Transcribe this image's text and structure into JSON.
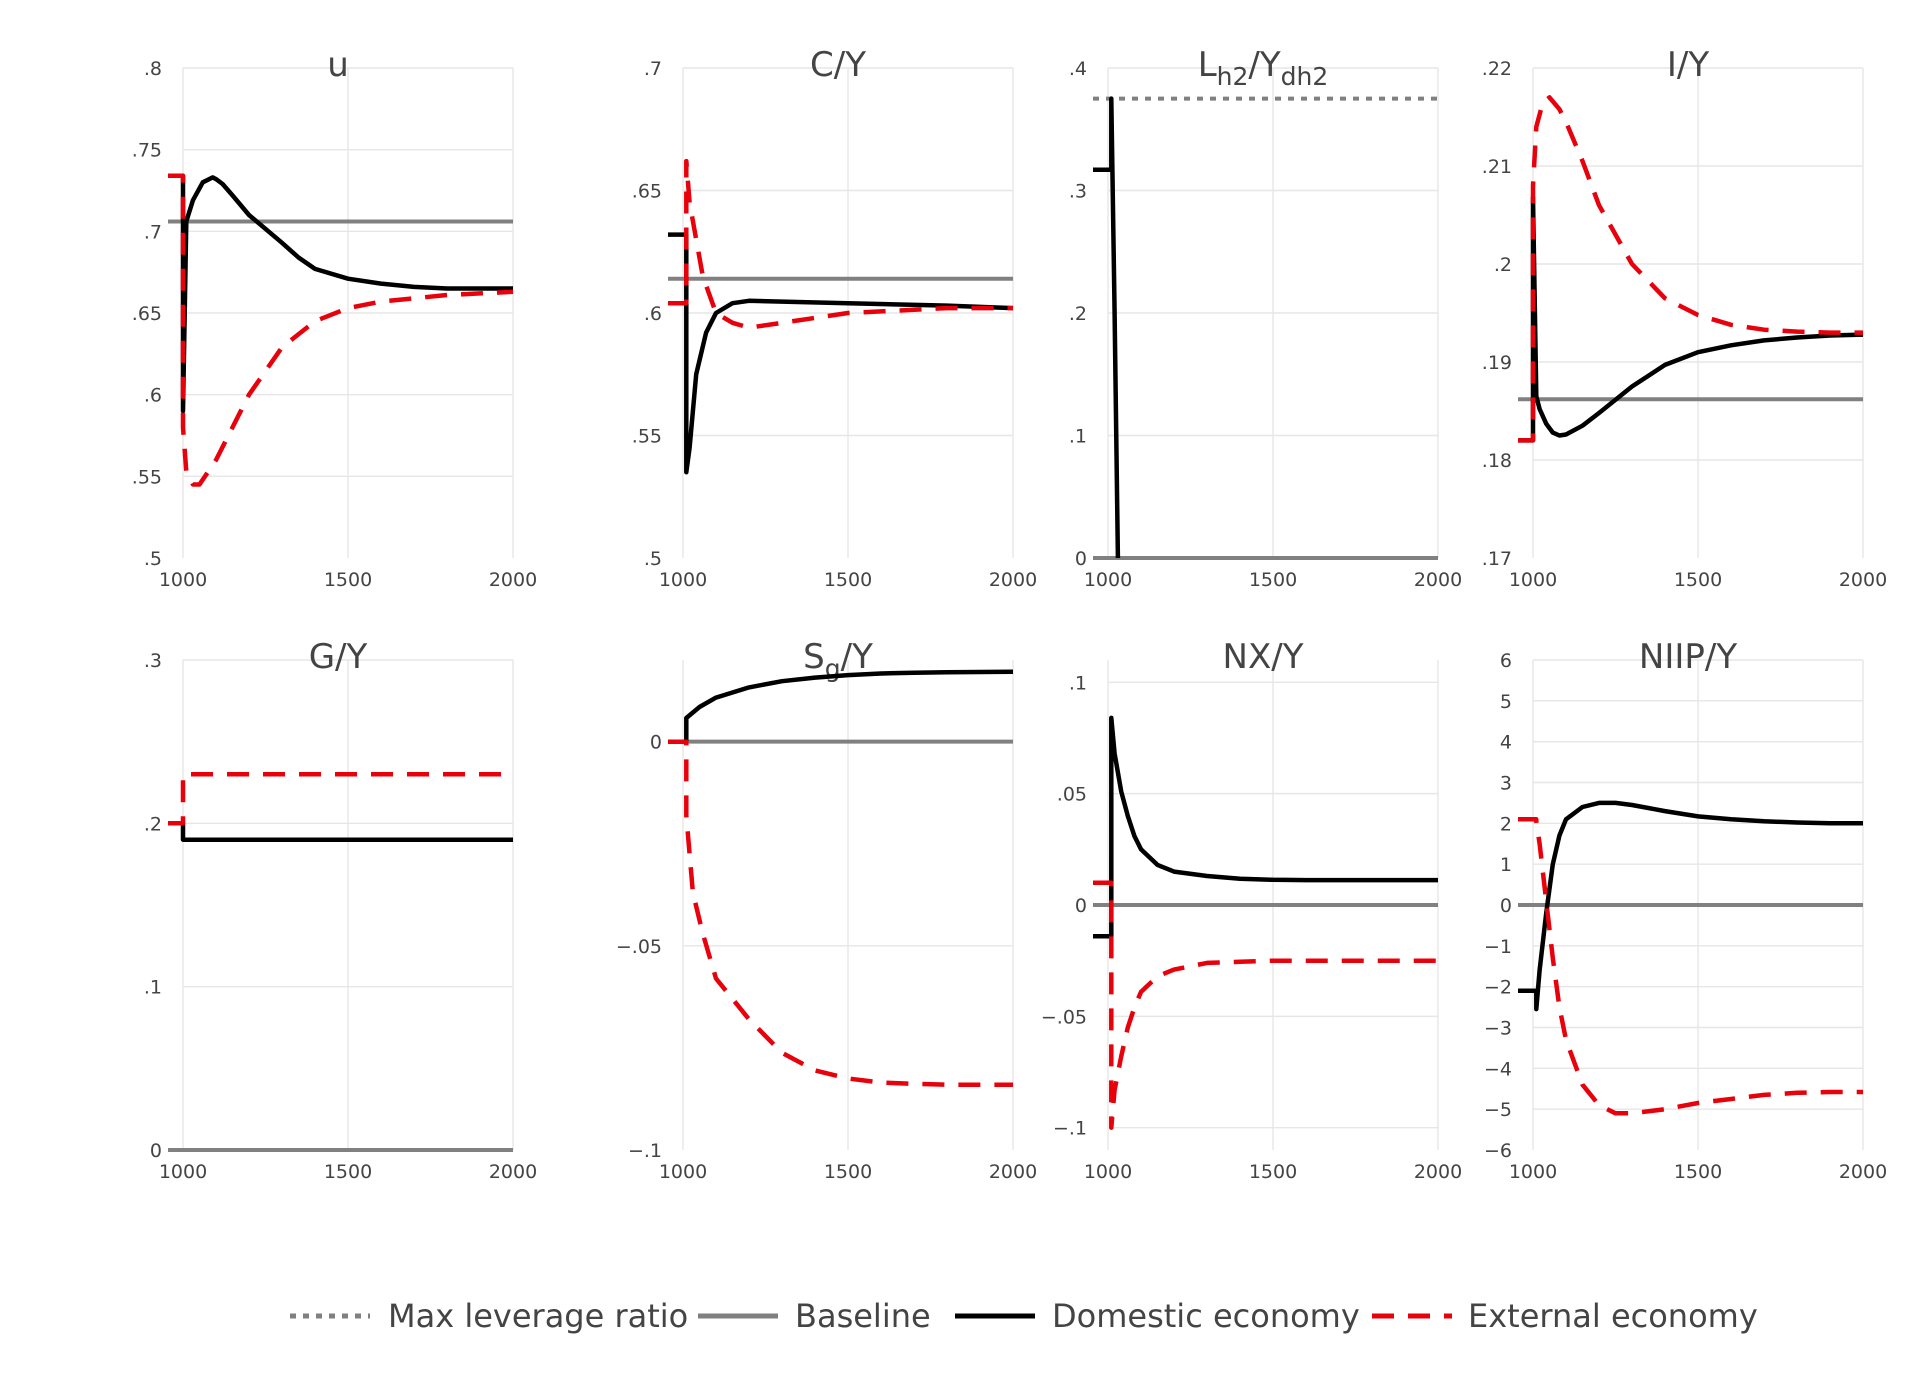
{
  "colors": {
    "max_leverage": "#808080",
    "baseline": "#808080",
    "domestic": "#000000",
    "external": "#e8000b"
  },
  "legend": [
    {
      "key": "max_leverage",
      "label": "Max leverage ratio"
    },
    {
      "key": "baseline",
      "label": "Baseline"
    },
    {
      "key": "domestic",
      "label": "Domestic economy"
    },
    {
      "key": "external",
      "label": "External economy"
    }
  ],
  "chart_data": [
    {
      "type": "line",
      "title": "u",
      "xlim": [
        1000,
        2000
      ],
      "ylim": [
        0.5,
        0.8
      ],
      "xticks": [
        1000,
        1500,
        2000
      ],
      "yticks": [
        0.5,
        0.55,
        0.6,
        0.65,
        0.7,
        0.75,
        0.8
      ],
      "baseline": 0.706,
      "series": [
        {
          "key": "domestic",
          "x": [
            950,
            1000,
            1000,
            1010,
            1030,
            1060,
            1090,
            1100,
            1120,
            1150,
            1200,
            1300,
            1350,
            1400,
            1500,
            1600,
            1700,
            1800,
            1900,
            2000
          ],
          "y": [
            0.734,
            0.734,
            0.59,
            0.706,
            0.719,
            0.73,
            0.733,
            0.732,
            0.729,
            0.722,
            0.71,
            0.693,
            0.684,
            0.677,
            0.671,
            0.668,
            0.666,
            0.665,
            0.665,
            0.665
          ]
        },
        {
          "key": "external",
          "x": [
            950,
            1000,
            1000,
            1010,
            1030,
            1050,
            1100,
            1200,
            1300,
            1400,
            1500,
            1600,
            1700,
            1800,
            1900,
            2000
          ],
          "y": [
            0.734,
            0.734,
            0.58,
            0.553,
            0.545,
            0.545,
            0.56,
            0.6,
            0.629,
            0.645,
            0.653,
            0.657,
            0.659,
            0.661,
            0.662,
            0.663
          ]
        }
      ]
    },
    {
      "type": "line",
      "title": "C/Y",
      "xlim": [
        1000,
        2000
      ],
      "ylim": [
        0.5,
        0.7
      ],
      "xticks": [
        1000,
        1500,
        2000
      ],
      "yticks": [
        0.5,
        0.55,
        0.6,
        0.65,
        0.7
      ],
      "baseline": 0.614,
      "series": [
        {
          "key": "domestic",
          "x": [
            950,
            1010,
            1010,
            1020,
            1040,
            1070,
            1100,
            1150,
            1200,
            1500,
            1800,
            2000
          ],
          "y": [
            0.632,
            0.632,
            0.535,
            0.545,
            0.575,
            0.592,
            0.6,
            0.604,
            0.605,
            0.604,
            0.603,
            0.602
          ]
        },
        {
          "key": "external",
          "x": [
            950,
            1010,
            1010,
            1020,
            1040,
            1060,
            1100,
            1150,
            1200,
            1300,
            1500,
            1800,
            2000
          ],
          "y": [
            0.604,
            0.604,
            0.662,
            0.645,
            0.63,
            0.615,
            0.6,
            0.596,
            0.594,
            0.596,
            0.6,
            0.602,
            0.602
          ]
        }
      ]
    },
    {
      "type": "line",
      "title": "L",
      "title_sub1": "h2",
      "title_mid": "/Y",
      "title_sub2": "dh2",
      "xlim": [
        1000,
        2000
      ],
      "ylim": [
        0,
        0.4
      ],
      "xticks": [
        1000,
        1500,
        2000
      ],
      "yticks": [
        0,
        0.1,
        0.2,
        0.3,
        0.4
      ],
      "baseline": 0,
      "max_leverage": 0.375,
      "series": [
        {
          "key": "domestic",
          "x": [
            950,
            1010,
            1010,
            1020,
            1030
          ],
          "y": [
            0.317,
            0.317,
            0.375,
            0.2,
            0
          ]
        }
      ]
    },
    {
      "type": "line",
      "title": "I/Y",
      "xlim": [
        1000,
        2000
      ],
      "ylim": [
        0.17,
        0.22
      ],
      "xticks": [
        1000,
        1500,
        2000
      ],
      "yticks": [
        0.17,
        0.18,
        0.19,
        0.2,
        0.21,
        0.22
      ],
      "baseline": 0.1862,
      "series": [
        {
          "key": "domestic",
          "x": [
            950,
            1000,
            1000,
            1010,
            1020,
            1040,
            1060,
            1080,
            1100,
            1150,
            1200,
            1300,
            1400,
            1500,
            1600,
            1700,
            1800,
            1900,
            2000
          ],
          "y": [
            0.182,
            0.182,
            0.2068,
            0.1865,
            0.1852,
            0.1837,
            0.1828,
            0.1825,
            0.1826,
            0.1835,
            0.1848,
            0.1875,
            0.1897,
            0.191,
            0.1917,
            0.1922,
            0.1925,
            0.1927,
            0.1928
          ]
        },
        {
          "key": "external",
          "x": [
            950,
            1000,
            1000,
            1010,
            1030,
            1050,
            1080,
            1100,
            1150,
            1200,
            1300,
            1400,
            1500,
            1600,
            1700,
            1800,
            1900,
            2000
          ],
          "y": [
            0.182,
            0.182,
            0.208,
            0.214,
            0.2165,
            0.217,
            0.2158,
            0.2145,
            0.2105,
            0.206,
            0.2,
            0.1965,
            0.1948,
            0.1938,
            0.1933,
            0.1931,
            0.193,
            0.193
          ]
        }
      ]
    },
    {
      "type": "line",
      "title": "G/Y",
      "xlim": [
        1000,
        2000
      ],
      "ylim": [
        0,
        0.3
      ],
      "xticks": [
        1000,
        1500,
        2000
      ],
      "yticks": [
        0,
        0.1,
        0.2,
        0.3
      ],
      "baseline": 0,
      "series": [
        {
          "key": "domestic",
          "x": [
            950,
            1000,
            1000,
            2000
          ],
          "y": [
            0.2,
            0.2,
            0.19,
            0.19
          ]
        },
        {
          "key": "external",
          "x": [
            950,
            1000,
            1000,
            2000
          ],
          "y": [
            0.2,
            0.2,
            0.23,
            0.23
          ]
        }
      ]
    },
    {
      "type": "line",
      "title": "S",
      "title_sub1": "g",
      "title_mid": "/Y",
      "xlim": [
        1000,
        2000
      ],
      "ylim": [
        -0.1,
        0.02
      ],
      "xticks": [
        1000,
        1500,
        2000
      ],
      "yticks": [
        -0.1,
        -0.05,
        0
      ],
      "baseline": 0,
      "series": [
        {
          "key": "domestic",
          "x": [
            950,
            1010,
            1010,
            1050,
            1100,
            1200,
            1300,
            1400,
            1500,
            1600,
            1700,
            1800,
            2000
          ],
          "y": [
            0,
            0,
            0.0058,
            0.0085,
            0.0108,
            0.0133,
            0.0148,
            0.0157,
            0.0163,
            0.0167,
            0.0169,
            0.017,
            0.0171
          ]
        },
        {
          "key": "external",
          "x": [
            950,
            1010,
            1010,
            1030,
            1060,
            1100,
            1200,
            1300,
            1400,
            1500,
            1600,
            1700,
            1800,
            1900,
            2000
          ],
          "y": [
            0,
            0,
            -0.018,
            -0.037,
            -0.047,
            -0.058,
            -0.068,
            -0.0762,
            -0.0805,
            -0.0825,
            -0.0835,
            -0.0838,
            -0.084,
            -0.084,
            -0.084
          ]
        }
      ]
    },
    {
      "type": "line",
      "title": "NX/Y",
      "xlim": [
        1000,
        2000
      ],
      "ylim": [
        -0.11,
        0.11
      ],
      "xticks": [
        1000,
        1500,
        2000
      ],
      "yticks": [
        -0.1,
        -0.05,
        0,
        0.05,
        0.1
      ],
      "baseline": 0,
      "series": [
        {
          "key": "domestic",
          "x": [
            950,
            1010,
            1010,
            1020,
            1040,
            1060,
            1080,
            1100,
            1150,
            1200,
            1300,
            1400,
            1500,
            1600,
            1700,
            1800,
            1900,
            2000
          ],
          "y": [
            -0.014,
            -0.014,
            0.084,
            0.068,
            0.051,
            0.04,
            0.031,
            0.025,
            0.018,
            0.015,
            0.013,
            0.0118,
            0.0113,
            0.0112,
            0.0112,
            0.0112,
            0.0112,
            0.0112
          ]
        },
        {
          "key": "external",
          "x": [
            950,
            1010,
            1010,
            1020,
            1040,
            1060,
            1080,
            1100,
            1150,
            1200,
            1300,
            1400,
            1500,
            1600,
            1700,
            1800,
            1900,
            2000
          ],
          "y": [
            0.01,
            0.01,
            -0.1,
            -0.083,
            -0.068,
            -0.055,
            -0.046,
            -0.039,
            -0.032,
            -0.029,
            -0.026,
            -0.0255,
            -0.025,
            -0.025,
            -0.025,
            -0.025,
            -0.025,
            -0.025
          ]
        }
      ]
    },
    {
      "type": "line",
      "title": "NIIP/Y",
      "xlim": [
        1000,
        2000
      ],
      "ylim": [
        -6,
        6
      ],
      "xticks": [
        1000,
        1500,
        2000
      ],
      "yticks": [
        -6,
        -5,
        -4,
        -3,
        -2,
        -1,
        0,
        1,
        2,
        3,
        4,
        5,
        6
      ],
      "baseline": 0,
      "series": [
        {
          "key": "domestic",
          "x": [
            950,
            1010,
            1010,
            1020,
            1040,
            1060,
            1080,
            1100,
            1150,
            1200,
            1250,
            1300,
            1400,
            1500,
            1600,
            1700,
            1800,
            1900,
            2000
          ],
          "y": [
            -2.1,
            -2.1,
            -2.55,
            -1.6,
            -0.2,
            1.0,
            1.7,
            2.1,
            2.4,
            2.5,
            2.5,
            2.45,
            2.3,
            2.17,
            2.1,
            2.05,
            2.02,
            2.0,
            2.0
          ]
        },
        {
          "key": "external",
          "x": [
            950,
            1010,
            1010,
            1020,
            1040,
            1060,
            1080,
            1100,
            1150,
            1200,
            1250,
            1300,
            1400,
            1500,
            1600,
            1700,
            1800,
            1900,
            2000
          ],
          "y": [
            2.1,
            2.1,
            2.05,
            1.5,
            0.1,
            -1.3,
            -2.5,
            -3.3,
            -4.4,
            -4.9,
            -5.1,
            -5.1,
            -5.0,
            -4.85,
            -4.75,
            -4.65,
            -4.6,
            -4.58,
            -4.58
          ]
        }
      ]
    }
  ]
}
